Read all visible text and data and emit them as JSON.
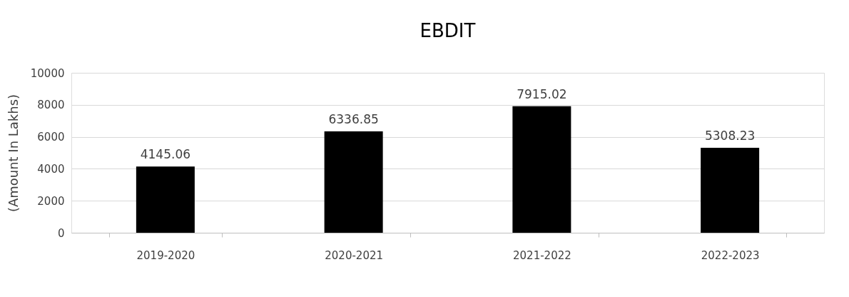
{
  "chart_data": {
    "type": "bar",
    "title": "EBDIT",
    "ylabel": "(Amount In Lakhs)",
    "categories": [
      "2019-2020",
      "2020-2021",
      "2021-2022",
      "2022-2023"
    ],
    "values": [
      4145.06,
      6336.85,
      7915.02,
      5308.23
    ],
    "color": "#000000",
    "ylim": [
      0,
      10000
    ],
    "yticks": [
      0,
      2000,
      4000,
      6000,
      8000,
      10000
    ],
    "grid": "y",
    "data_labels": true
  }
}
